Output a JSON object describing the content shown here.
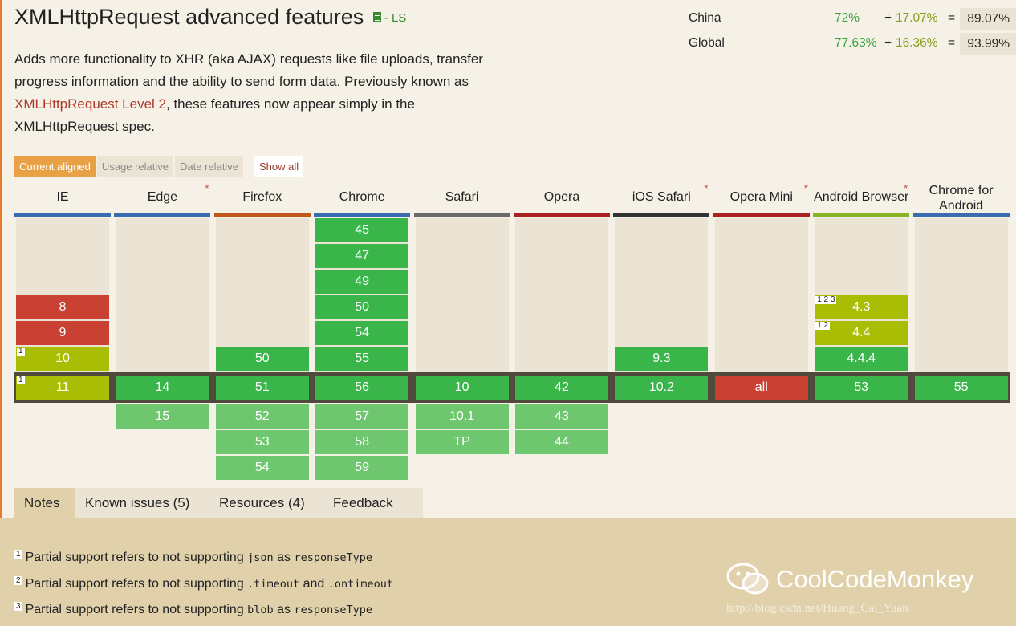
{
  "title": "XMLHttpRequest advanced features",
  "status_badge": "- LS",
  "description": {
    "part1": "Adds more functionality to XHR (aka AJAX) requests like file uploads, transfer progress information and the ability to send form data. Previously known as ",
    "link": "XMLHttpRequest Level 2",
    "part2": ", these features now appear simply in the XMLHttpRequest spec."
  },
  "usage": [
    {
      "label": "China",
      "full": "72%",
      "plus": "+",
      "partial": "17.07%",
      "eq": "=",
      "total": "89.07%"
    },
    {
      "label": "Global",
      "full": "77.63%",
      "plus": "+",
      "partial": "16.36%",
      "eq": "=",
      "total": "93.99%"
    }
  ],
  "view_controls": {
    "current": "Current aligned",
    "usage": "Usage relative",
    "date": "Date relative",
    "show_all": "Show all"
  },
  "browsers": [
    {
      "name": "IE",
      "star": "",
      "color": "#3a6ab0"
    },
    {
      "name": "Edge",
      "star": "*",
      "color": "#3a6ab0"
    },
    {
      "name": "Firefox",
      "star": "",
      "color": "#c0581a"
    },
    {
      "name": "Chrome",
      "star": "",
      "color": "#3a6ab0"
    },
    {
      "name": "Safari",
      "star": "",
      "color": "#6b6b6b"
    },
    {
      "name": "Opera",
      "star": "",
      "color": "#a82222"
    },
    {
      "name": "iOS Safari",
      "star": "*",
      "color": "#333333"
    },
    {
      "name": "Opera Mini",
      "star": "*",
      "color": "#a82222"
    },
    {
      "name": "Android Browser",
      "star": "*",
      "color": "#86b324"
    },
    {
      "name": "Chrome for Android",
      "star": "",
      "color": "#3a6ab0"
    }
  ],
  "versions": {
    "ie": {
      "past": [
        {
          "v": "8",
          "s": "n"
        },
        {
          "v": "9",
          "s": "n"
        },
        {
          "v": "10",
          "s": "p",
          "note": "1"
        }
      ],
      "current": {
        "v": "11",
        "s": "p",
        "note": "1"
      },
      "future": []
    },
    "edge": {
      "past": [],
      "current": {
        "v": "14",
        "s": "y"
      },
      "future": [
        {
          "v": "15",
          "s": "f"
        }
      ]
    },
    "firefox": {
      "past": [
        {
          "v": "50",
          "s": "y"
        }
      ],
      "current": {
        "v": "51",
        "s": "y"
      },
      "future": [
        {
          "v": "52",
          "s": "f"
        },
        {
          "v": "53",
          "s": "f"
        },
        {
          "v": "54",
          "s": "f"
        }
      ]
    },
    "chrome": {
      "past": [
        {
          "v": "45",
          "s": "y"
        },
        {
          "v": "47",
          "s": "y"
        },
        {
          "v": "49",
          "s": "y"
        },
        {
          "v": "50",
          "s": "y"
        },
        {
          "v": "54",
          "s": "y"
        },
        {
          "v": "55",
          "s": "y"
        }
      ],
      "current": {
        "v": "56",
        "s": "y"
      },
      "future": [
        {
          "v": "57",
          "s": "f"
        },
        {
          "v": "58",
          "s": "f"
        },
        {
          "v": "59",
          "s": "f"
        }
      ]
    },
    "safari": {
      "past": [],
      "current": {
        "v": "10",
        "s": "y"
      },
      "future": [
        {
          "v": "10.1",
          "s": "f"
        },
        {
          "v": "TP",
          "s": "f"
        }
      ]
    },
    "opera": {
      "past": [],
      "current": {
        "v": "42",
        "s": "y"
      },
      "future": [
        {
          "v": "43",
          "s": "f"
        },
        {
          "v": "44",
          "s": "f"
        }
      ]
    },
    "ios": {
      "past": [
        {
          "v": "9.3",
          "s": "y"
        }
      ],
      "current": {
        "v": "10.2",
        "s": "y"
      },
      "future": []
    },
    "operamini": {
      "past": [],
      "current": {
        "v": "all",
        "s": "n"
      },
      "future": []
    },
    "android": {
      "past": [
        {
          "v": "4.3",
          "s": "p",
          "note": "1 2 3"
        },
        {
          "v": "4.4",
          "s": "p",
          "note": "1 2"
        },
        {
          "v": "4.4.4",
          "s": "y"
        }
      ],
      "current": {
        "v": "53",
        "s": "y"
      },
      "future": []
    },
    "chromeandroid": {
      "past": [],
      "current": {
        "v": "55",
        "s": "y"
      },
      "future": []
    }
  },
  "tabs": [
    "Notes",
    "Known issues (5)",
    "Resources (4)",
    "Feedback"
  ],
  "notes": [
    {
      "num": "1",
      "text": "Partial support refers to not supporting ",
      "code1": "json",
      "mid": " as ",
      "code2": "responseType"
    },
    {
      "num": "2",
      "text": "Partial support refers to not supporting ",
      "code1": ".timeout",
      "mid": " and ",
      "code2": ".ontimeout"
    },
    {
      "num": "3",
      "text": "Partial support refers to not supporting ",
      "code1": "blob",
      "mid": " as ",
      "code2": "responseType"
    }
  ],
  "watermark": {
    "text": "CoolCodeMonkey",
    "url": "http://blog.csdn.net/Huang_Cai_Yuan"
  }
}
